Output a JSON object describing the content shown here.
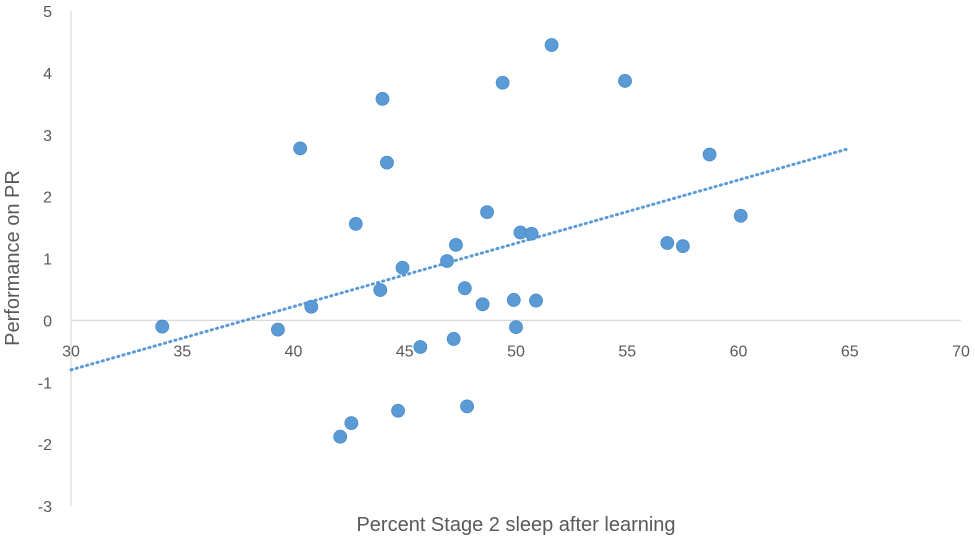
{
  "chart_data": {
    "type": "scatter",
    "title": "",
    "xlabel": "Percent Stage 2 sleep after learning",
    "ylabel": "Performance on PR",
    "xlim": [
      30,
      70
    ],
    "ylim": [
      -3,
      5
    ],
    "x_ticks": [
      30,
      35,
      40,
      45,
      50,
      55,
      60,
      65,
      70
    ],
    "y_ticks": [
      -3,
      -2,
      -1,
      0,
      1,
      2,
      3,
      4,
      5
    ],
    "x_tick_labels": [
      "30",
      "35",
      "40",
      "45",
      "50",
      "55",
      "60",
      "65",
      "70"
    ],
    "y_tick_labels": [
      "-3",
      "-2",
      "-1",
      "0",
      "1",
      "2",
      "3",
      "4",
      "5"
    ],
    "grid": false,
    "marker_color": "#5B9BD5",
    "trendline_color": "#5B9BD5",
    "points": [
      {
        "x": 34.1,
        "y": -0.1
      },
      {
        "x": 39.3,
        "y": -0.15
      },
      {
        "x": 40.3,
        "y": 2.78
      },
      {
        "x": 40.8,
        "y": 0.22
      },
      {
        "x": 42.1,
        "y": -1.88
      },
      {
        "x": 42.6,
        "y": -1.66
      },
      {
        "x": 42.8,
        "y": 1.56
      },
      {
        "x": 43.9,
        "y": 0.49
      },
      {
        "x": 44.0,
        "y": 3.58
      },
      {
        "x": 44.2,
        "y": 2.55
      },
      {
        "x": 44.7,
        "y": -1.46
      },
      {
        "x": 44.9,
        "y": 0.85
      },
      {
        "x": 45.7,
        "y": -0.43
      },
      {
        "x": 46.9,
        "y": 0.96
      },
      {
        "x": 47.2,
        "y": -0.3
      },
      {
        "x": 47.3,
        "y": 1.22
      },
      {
        "x": 47.7,
        "y": 0.52
      },
      {
        "x": 47.8,
        "y": -1.39
      },
      {
        "x": 48.5,
        "y": 0.26
      },
      {
        "x": 48.7,
        "y": 1.75
      },
      {
        "x": 49.4,
        "y": 3.84
      },
      {
        "x": 49.9,
        "y": 0.33
      },
      {
        "x": 50.0,
        "y": -0.11
      },
      {
        "x": 50.2,
        "y": 1.42
      },
      {
        "x": 50.7,
        "y": 1.4
      },
      {
        "x": 50.9,
        "y": 0.32
      },
      {
        "x": 51.6,
        "y": 4.45
      },
      {
        "x": 54.9,
        "y": 3.87
      },
      {
        "x": 56.8,
        "y": 1.25
      },
      {
        "x": 57.5,
        "y": 1.2
      },
      {
        "x": 58.7,
        "y": 2.68
      },
      {
        "x": 60.1,
        "y": 1.69
      }
    ],
    "trendline": {
      "style": "dotted",
      "x": [
        30,
        65
      ],
      "y": [
        -0.8,
        2.78
      ]
    }
  }
}
